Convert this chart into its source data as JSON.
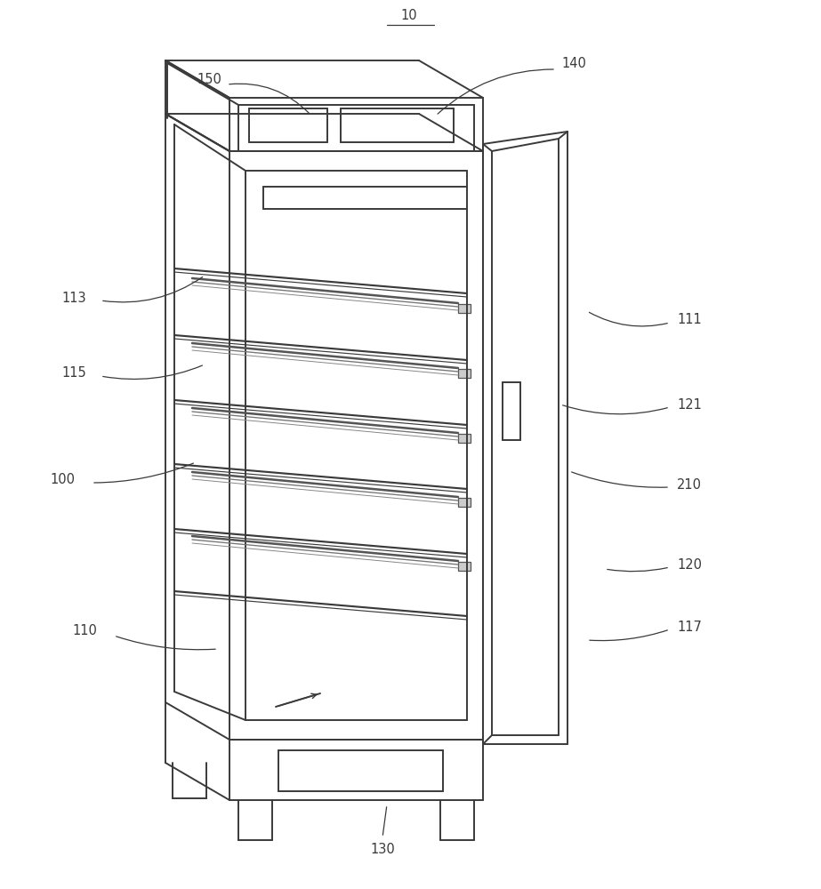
{
  "bg_color": "#ffffff",
  "line_color": "#3a3a3a",
  "line_width": 1.4,
  "label_fontsize": 10.5,
  "label_color": "#3a3a3a",
  "figsize": [
    9.23,
    10.0
  ],
  "dpi": 100
}
